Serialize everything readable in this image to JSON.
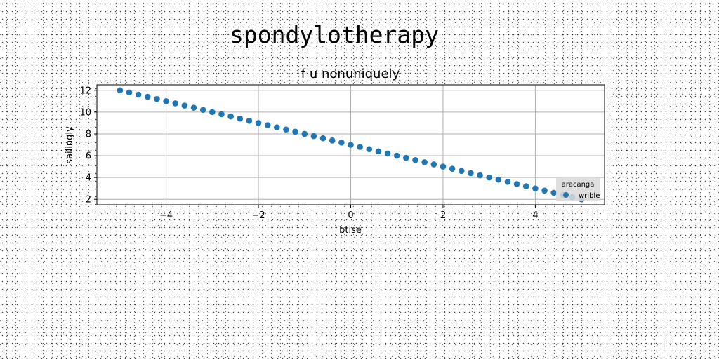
{
  "figure": {
    "suptitle": "spondylotherapy"
  },
  "chart_data": {
    "type": "scatter",
    "title": "f u nonuniquely",
    "xlabel": "btise",
    "ylabel": "sailingly",
    "xlim": [
      -5.5,
      5.5
    ],
    "ylim": [
      1.5,
      12.5
    ],
    "xticks": [
      -4,
      -2,
      0,
      2,
      4
    ],
    "xtick_labels": [
      "−4",
      "−2",
      "0",
      "2",
      "4"
    ],
    "yticks": [
      2,
      4,
      6,
      8,
      10,
      12
    ],
    "ytick_labels": [
      "2",
      "4",
      "6",
      "8",
      "10",
      "12"
    ],
    "grid": true,
    "legend": {
      "title": "aracanga",
      "placement": "lower right"
    },
    "series": [
      {
        "name": "wrible",
        "color": "#1f77b4",
        "x": [
          -5.0,
          -4.8,
          -4.6,
          -4.4,
          -4.2,
          -4.0,
          -3.8,
          -3.6,
          -3.4,
          -3.2,
          -3.0,
          -2.8,
          -2.6,
          -2.4,
          -2.2,
          -2.0,
          -1.8,
          -1.6,
          -1.4,
          -1.2,
          -1.0,
          -0.8,
          -0.6,
          -0.4,
          -0.2,
          0.0,
          0.2,
          0.4,
          0.6,
          0.8,
          1.0,
          1.2,
          1.4,
          1.6,
          1.8,
          2.0,
          2.2,
          2.4,
          2.6,
          2.8,
          3.0,
          3.2,
          3.4,
          3.6,
          3.8,
          4.0,
          4.2,
          4.4,
          4.6,
          4.8,
          5.0
        ],
        "y": [
          12.0,
          11.8,
          11.6,
          11.4,
          11.2,
          11.0,
          10.8,
          10.6,
          10.4,
          10.2,
          10.0,
          9.8,
          9.6,
          9.4,
          9.2,
          9.0,
          8.8,
          8.6,
          8.4,
          8.2,
          8.0,
          7.8,
          7.6,
          7.4,
          7.2,
          7.0,
          6.8,
          6.6,
          6.4,
          6.2,
          6.0,
          5.8,
          5.6,
          5.4,
          5.2,
          5.0,
          4.8,
          4.6,
          4.4,
          4.2,
          4.0,
          3.8,
          3.6,
          3.4,
          3.2,
          3.0,
          2.8,
          2.6,
          2.4,
          2.2,
          2.0
        ]
      }
    ]
  }
}
